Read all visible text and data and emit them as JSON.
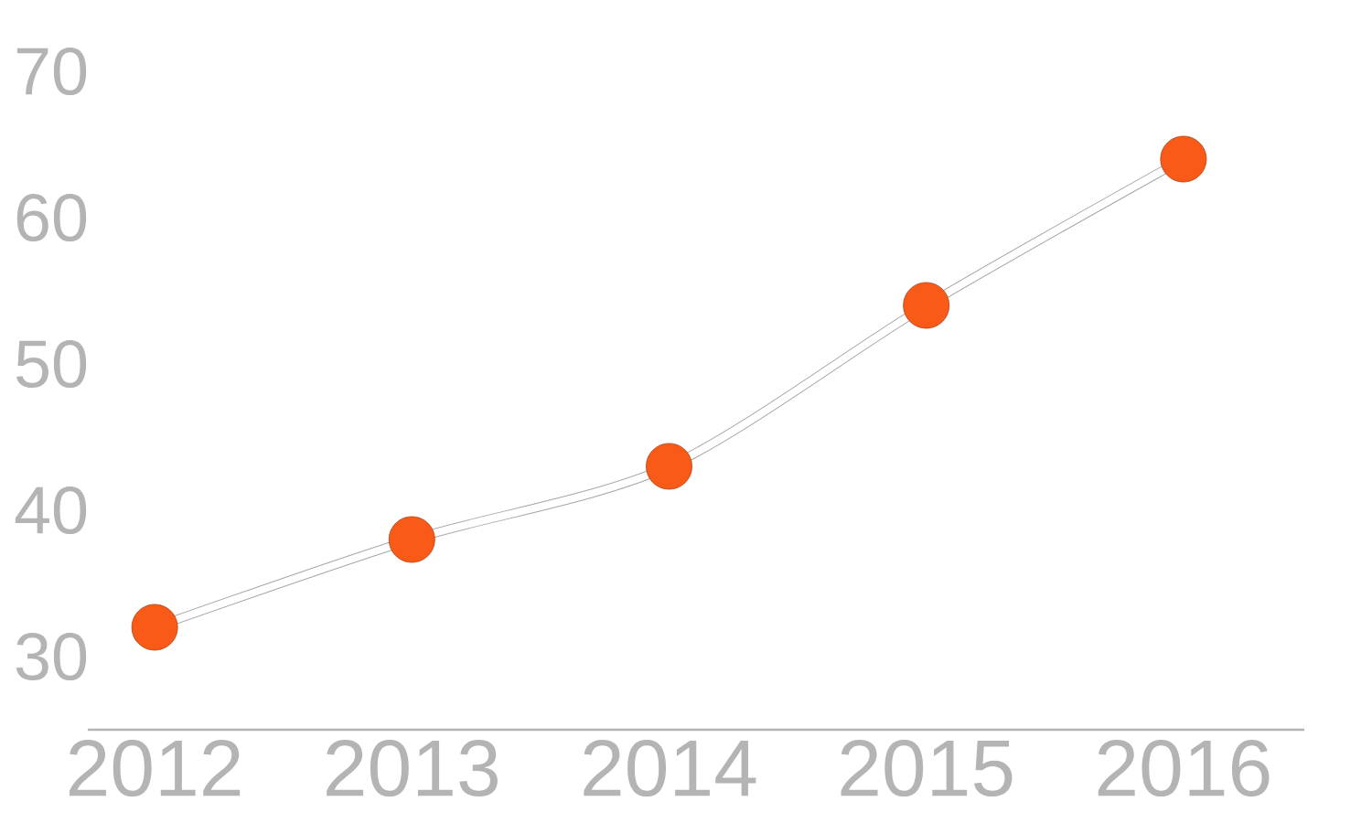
{
  "chart_data": {
    "type": "line",
    "categories": [
      "2012",
      "2013",
      "2014",
      "2015",
      "2016"
    ],
    "values": [
      32,
      38,
      43,
      54,
      64
    ],
    "color": "#f95a17",
    "ylim": [
      25,
      70
    ],
    "yticks": [
      30,
      40,
      50,
      60,
      70
    ],
    "marker": "circle",
    "line_style": "solid"
  }
}
